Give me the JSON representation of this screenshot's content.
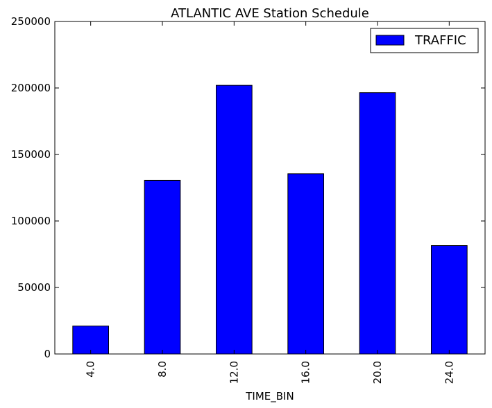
{
  "chart_data": {
    "type": "bar",
    "title": "ATLANTIC AVE Station Schedule",
    "xlabel": "TIME_BIN",
    "ylabel": "",
    "categories": [
      "4.0",
      "8.0",
      "12.0",
      "16.0",
      "20.0",
      "24.0"
    ],
    "series": [
      {
        "name": "TRAFFIC",
        "values": [
          21000,
          130500,
          202000,
          135500,
          196500,
          81500
        ]
      }
    ],
    "ylim": [
      0,
      250000
    ],
    "yticks": [
      "0",
      "50000",
      "100000",
      "150000",
      "200000",
      "250000"
    ],
    "ytick_values": [
      0,
      50000,
      100000,
      150000,
      200000,
      250000
    ],
    "grid": false,
    "legend_position": "top-right",
    "bar_color": "#0000ff"
  }
}
